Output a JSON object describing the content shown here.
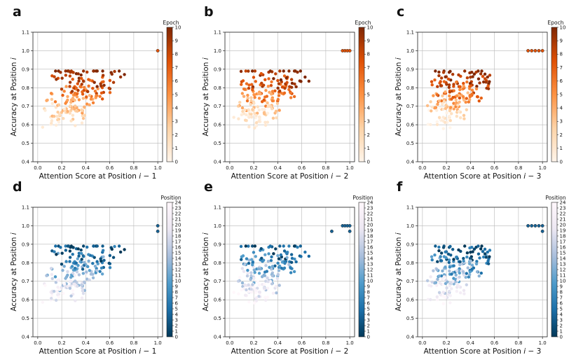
{
  "figure": {
    "colors": {
      "epoch_map": [
        "#fff5eb",
        "#fdd3a7",
        "#fd9243",
        "#df5005",
        "#7f2704"
      ],
      "position_map": [
        "#023858",
        "#1b6fa8",
        "#4f9ccb",
        "#a9bfdc",
        "#ece7f2",
        "#fff7fb"
      ]
    }
  },
  "chart_data": [
    {
      "id": "a",
      "type": "scatter",
      "letter": "a",
      "xlabel_main": "Attention Score at Position ",
      "xlabel_var": "i",
      "xlabel_suffix": " − 1",
      "ylabel_main": "Accuracy at Position ",
      "ylabel_var": "i",
      "xlim": [
        -0.04,
        1.04
      ],
      "ylim": [
        0.4,
        1.1
      ],
      "xticks": [
        "0.0",
        "0.2",
        "0.4",
        "0.6",
        "0.8",
        "1.0"
      ],
      "yticks": [
        "0.4",
        "0.5",
        "0.6",
        "0.7",
        "0.8",
        "0.9",
        "1.0",
        "1.1"
      ],
      "colorbar": {
        "title": "Epoch",
        "min": 0,
        "max": 10,
        "ticks": [
          "0",
          "1",
          "2",
          "3",
          "4",
          "5",
          "6",
          "7",
          "8",
          "9",
          "10"
        ],
        "cmap": "epoch"
      },
      "cluster_x": [
        0.03,
        0.72
      ],
      "cluster_y": [
        0.53,
        0.88
      ],
      "corner": [
        [
          1.0,
          1.0
        ]
      ],
      "seed": 11
    },
    {
      "id": "b",
      "type": "scatter",
      "letter": "b",
      "xlabel_main": "Attention Score at Position ",
      "xlabel_var": "i",
      "xlabel_suffix": " − 2",
      "ylabel_main": "Accuracy at Position ",
      "ylabel_var": "i",
      "xlim": [
        -0.04,
        1.04
      ],
      "ylim": [
        0.4,
        1.1
      ],
      "xticks": [
        "0.0",
        "0.2",
        "0.4",
        "0.6",
        "0.8",
        "1.0"
      ],
      "yticks": [
        "0.4",
        "0.5",
        "0.6",
        "0.7",
        "0.8",
        "0.9",
        "1.0",
        "1.1"
      ],
      "colorbar": {
        "title": "Epoch",
        "min": 0,
        "max": 10,
        "ticks": [
          "0",
          "1",
          "2",
          "3",
          "4",
          "5",
          "6",
          "7",
          "8",
          "9",
          "10"
        ],
        "cmap": "epoch"
      },
      "cluster_x": [
        0.02,
        0.68
      ],
      "cluster_y": [
        0.54,
        0.89
      ],
      "corner": [
        [
          0.94,
          1.0
        ],
        [
          0.96,
          1.0
        ],
        [
          0.98,
          1.0
        ],
        [
          1.0,
          1.0
        ]
      ],
      "seed": 23
    },
    {
      "id": "c",
      "type": "scatter",
      "letter": "c",
      "xlabel_main": "Attention Score at Position ",
      "xlabel_var": "i",
      "xlabel_suffix": " − 3",
      "ylabel_main": "Accuracy at Position ",
      "ylabel_var": "i",
      "xlim": [
        -0.04,
        1.04
      ],
      "ylim": [
        0.4,
        1.1
      ],
      "xticks": [
        "0.0",
        "0.2",
        "0.4",
        "0.6",
        "0.8",
        "1.0"
      ],
      "yticks": [
        "0.4",
        "0.5",
        "0.6",
        "0.7",
        "0.8",
        "0.9",
        "1.0",
        "1.1"
      ],
      "colorbar": {
        "title": "Epoch",
        "min": 0,
        "max": 10,
        "ticks": [
          "0",
          "1",
          "2",
          "3",
          "4",
          "5",
          "6",
          "7",
          "8",
          "9",
          "10"
        ],
        "cmap": "epoch"
      },
      "cluster_x": [
        0.0,
        0.64
      ],
      "cluster_y": [
        0.56,
        0.87
      ],
      "corner": [
        [
          0.88,
          1.0
        ],
        [
          0.91,
          1.0
        ],
        [
          0.94,
          1.0
        ],
        [
          0.97,
          1.0
        ],
        [
          1.0,
          1.0
        ]
      ],
      "seed": 37
    },
    {
      "id": "d",
      "type": "scatter",
      "letter": "d",
      "xlabel_main": "Attention Score at Position ",
      "xlabel_var": "i",
      "xlabel_suffix": " − 1",
      "ylabel_main": "Accuracy at Position ",
      "ylabel_var": "i",
      "xlim": [
        -0.04,
        1.04
      ],
      "ylim": [
        0.4,
        1.1
      ],
      "xticks": [
        "0.0",
        "0.2",
        "0.4",
        "0.6",
        "0.8",
        "1.0"
      ],
      "yticks": [
        "0.4",
        "0.5",
        "0.6",
        "0.7",
        "0.8",
        "0.9",
        "1.0",
        "1.1"
      ],
      "colorbar": {
        "title": "Position",
        "min": 0,
        "max": 24,
        "ticks": [
          "0",
          "1",
          "2",
          "3",
          "4",
          "5",
          "6",
          "7",
          "8",
          "9",
          "10",
          "11",
          "12",
          "13",
          "14",
          "15",
          "16",
          "17",
          "18",
          "19",
          "20",
          "21",
          "22",
          "23",
          "24"
        ],
        "cmap": "position"
      },
      "cluster_x": [
        0.03,
        0.72
      ],
      "cluster_y": [
        0.53,
        0.88
      ],
      "corner": [
        [
          1.0,
          1.0
        ],
        [
          1.0,
          0.97
        ]
      ],
      "seed": 11
    },
    {
      "id": "e",
      "type": "scatter",
      "letter": "e",
      "xlabel_main": "Attention Score at Position ",
      "xlabel_var": "i",
      "xlabel_suffix": " − 2",
      "ylabel_main": "Accuracy at Position ",
      "ylabel_var": "i",
      "xlim": [
        -0.04,
        1.04
      ],
      "ylim": [
        0.4,
        1.1
      ],
      "xticks": [
        "0.0",
        "0.2",
        "0.4",
        "0.6",
        "0.8",
        "1.0"
      ],
      "yticks": [
        "0.4",
        "0.5",
        "0.6",
        "0.7",
        "0.8",
        "0.9",
        "1.0",
        "1.1"
      ],
      "colorbar": {
        "title": "Position",
        "min": 0,
        "max": 24,
        "ticks": [
          "0",
          "1",
          "2",
          "3",
          "4",
          "5",
          "6",
          "7",
          "8",
          "9",
          "10",
          "11",
          "12",
          "13",
          "14",
          "15",
          "16",
          "17",
          "18",
          "19",
          "20",
          "21",
          "22",
          "23",
          "24"
        ],
        "cmap": "position"
      },
      "cluster_x": [
        0.02,
        0.68
      ],
      "cluster_y": [
        0.54,
        0.89
      ],
      "corner": [
        [
          0.85,
          0.97
        ],
        [
          0.94,
          1.0
        ],
        [
          0.96,
          1.0
        ],
        [
          0.98,
          1.0
        ],
        [
          1.0,
          1.0
        ],
        [
          1.0,
          0.97
        ]
      ],
      "seed": 23
    },
    {
      "id": "f",
      "type": "scatter",
      "letter": "f",
      "xlabel_main": "Attention Score at Position ",
      "xlabel_var": "i",
      "xlabel_suffix": " − 3",
      "ylabel_main": "Accuracy at Position ",
      "ylabel_var": "i",
      "xlim": [
        -0.04,
        1.04
      ],
      "ylim": [
        0.4,
        1.1
      ],
      "xticks": [
        "0.0",
        "0.2",
        "0.4",
        "0.6",
        "0.8",
        "1.0"
      ],
      "yticks": [
        "0.4",
        "0.5",
        "0.6",
        "0.7",
        "0.8",
        "0.9",
        "1.0",
        "1.1"
      ],
      "colorbar": {
        "title": "Position",
        "min": 0,
        "max": 24,
        "ticks": [
          "0",
          "1",
          "2",
          "3",
          "4",
          "5",
          "6",
          "7",
          "8",
          "9",
          "10",
          "11",
          "12",
          "13",
          "14",
          "15",
          "16",
          "17",
          "18",
          "19",
          "20",
          "21",
          "22",
          "23",
          "24"
        ],
        "cmap": "position"
      },
      "cluster_x": [
        0.0,
        0.64
      ],
      "cluster_y": [
        0.56,
        0.87
      ],
      "corner": [
        [
          0.88,
          1.0
        ],
        [
          0.91,
          1.0
        ],
        [
          0.94,
          1.0
        ],
        [
          0.97,
          1.0
        ],
        [
          1.0,
          1.0
        ],
        [
          1.0,
          0.97
        ]
      ],
      "seed": 37
    }
  ]
}
